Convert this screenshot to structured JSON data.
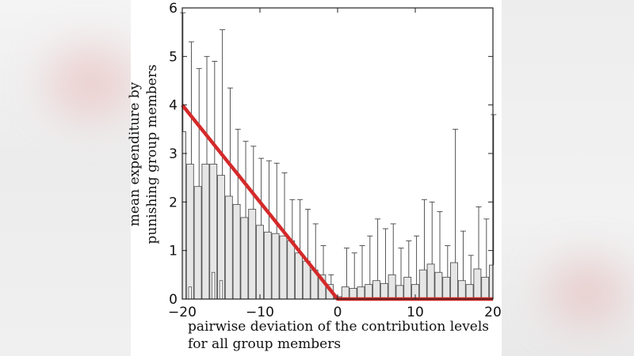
{
  "chart_data": {
    "type": "bar",
    "xlabel_lines": [
      "pairwise deviation of the contribution levels",
      "for all group members"
    ],
    "ylabel_lines": [
      "mean expenditure by",
      "punishing group members"
    ],
    "xlim": [
      -20,
      20
    ],
    "ylim": [
      0,
      6
    ],
    "xticks": [
      -20,
      -10,
      0,
      10,
      20
    ],
    "xtick_labels": [
      "−20",
      "−10",
      "0",
      "10",
      "20"
    ],
    "yticks": [
      0,
      1,
      2,
      3,
      4,
      5,
      6
    ],
    "ytick_labels": [
      "0",
      "1",
      "2",
      "3",
      "4",
      "5",
      "6"
    ],
    "bar_width": 1,
    "bar_color": "#e6e6e6",
    "bar_edge_color": "#555555",
    "errorbar_color": "#444444",
    "series": [
      {
        "x": [
          -20,
          -19,
          -18,
          -17,
          -16,
          -15,
          -14,
          -13,
          -12,
          -11,
          -10,
          -9,
          -8,
          -7,
          -6,
          -5,
          -4,
          -3,
          -2,
          -1,
          0,
          1,
          2,
          3,
          4,
          5,
          6,
          7,
          8,
          9,
          10,
          11,
          12,
          13,
          14,
          15,
          16,
          17,
          18,
          19,
          20
        ],
        "values": [
          3.45,
          2.78,
          2.32,
          2.78,
          2.78,
          2.55,
          2.12,
          1.95,
          1.68,
          1.85,
          1.52,
          1.38,
          1.35,
          1.3,
          1.2,
          0.95,
          0.78,
          0.6,
          0.5,
          0.3,
          0.05,
          0.25,
          0.22,
          0.25,
          0.3,
          0.38,
          0.32,
          0.5,
          0.28,
          0.45,
          0.3,
          0.6,
          0.72,
          0.55,
          0.45,
          0.75,
          0.38,
          0.3,
          0.62,
          0.45,
          0.7
        ],
        "error_upper": [
          5.9,
          5.3,
          4.75,
          5.0,
          4.9,
          5.55,
          4.35,
          3.5,
          3.25,
          3.15,
          2.9,
          2.85,
          2.8,
          2.6,
          2.05,
          2.05,
          1.85,
          1.55,
          1.1,
          0.5,
          0.05,
          1.05,
          0.95,
          1.1,
          1.3,
          1.65,
          1.45,
          1.55,
          1.05,
          1.2,
          1.3,
          2.05,
          2.0,
          1.8,
          1.1,
          3.5,
          1.4,
          0.9,
          1.9,
          1.65,
          3.8
        ]
      }
    ],
    "inner_bars": [
      {
        "x": -19,
        "value": 0.25
      },
      {
        "x": -16,
        "value": 0.55
      },
      {
        "x": -15,
        "value": 0.38
      }
    ],
    "fit_line": {
      "color": "#d42a2a",
      "points": [
        [
          -20,
          4.0
        ],
        [
          0,
          0
        ],
        [
          20,
          0
        ]
      ]
    }
  }
}
